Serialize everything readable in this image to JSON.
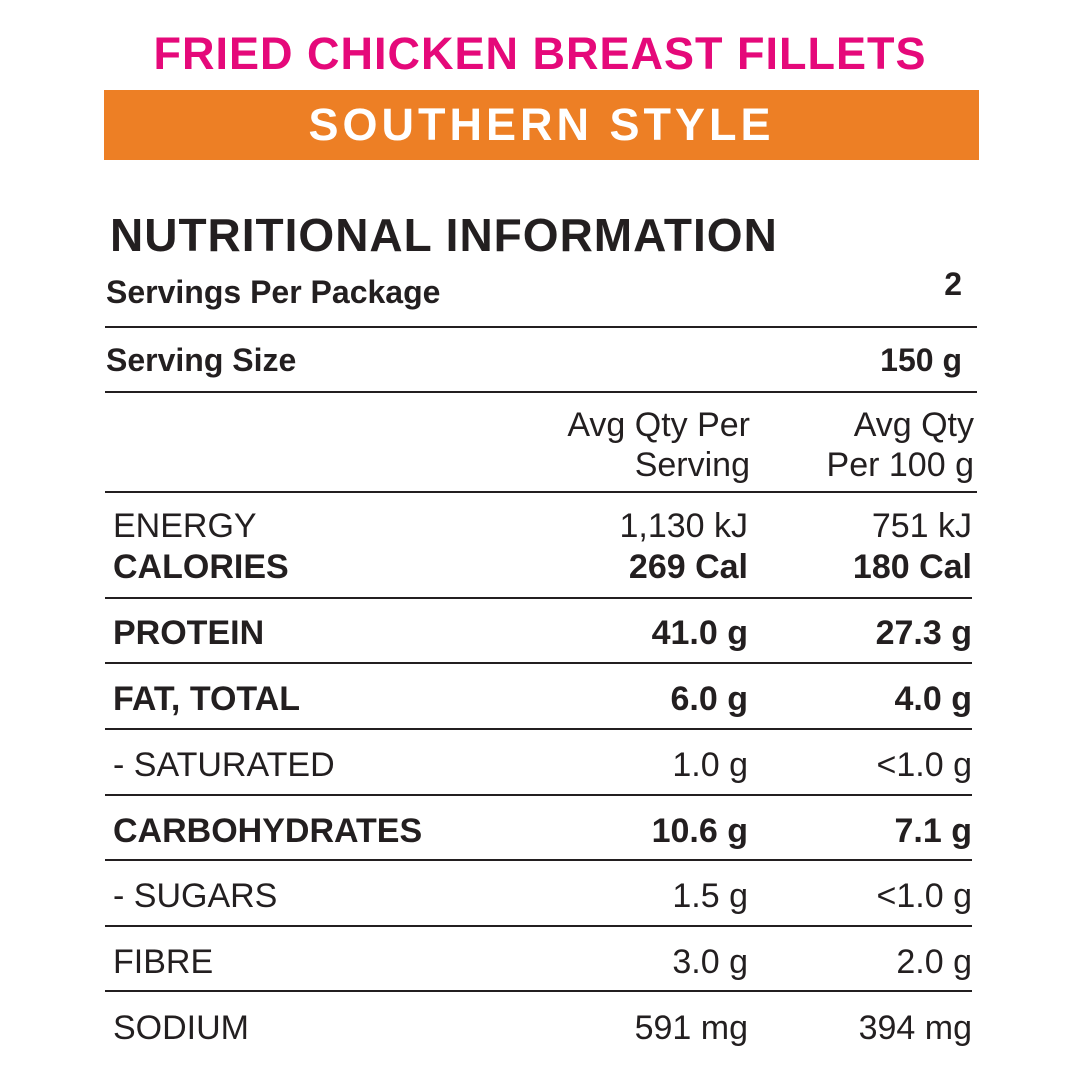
{
  "colors": {
    "title": "#e5097a",
    "banner": "#ed7f25",
    "text": "#231f20"
  },
  "title": "FRIED CHICKEN BREAST FILLETS",
  "subtitle": "SOUTHERN STYLE",
  "heading": "NUTRITIONAL INFORMATION",
  "servings_per_package": {
    "label": "Servings Per Package",
    "value": "2"
  },
  "serving_size": {
    "label": "Serving Size",
    "value": "150 g"
  },
  "columns": {
    "per_serving": [
      "Avg Qty Per",
      "Serving"
    ],
    "per_100g": [
      "Avg Qty",
      "Per 100 g"
    ]
  },
  "rows": [
    {
      "label": "ENERGY",
      "per_serving": "1,130 kJ",
      "per_100g": "751 kJ",
      "bold": false
    },
    {
      "label": "CALORIES",
      "per_serving": "269 Cal",
      "per_100g": "180 Cal",
      "bold": true
    },
    {
      "label": "PROTEIN",
      "per_serving": "41.0 g",
      "per_100g": "27.3 g",
      "bold": true
    },
    {
      "label": "FAT, TOTAL",
      "per_serving": "6.0 g",
      "per_100g": "4.0 g",
      "bold": true
    },
    {
      "label": "- SATURATED",
      "per_serving": "1.0 g",
      "per_100g": "<1.0 g",
      "bold": false
    },
    {
      "label": "CARBOHYDRATES",
      "per_serving": "10.6 g",
      "per_100g": "7.1 g",
      "bold": true
    },
    {
      "label": "- SUGARS",
      "per_serving": "1.5 g",
      "per_100g": "<1.0 g",
      "bold": false
    },
    {
      "label": "FIBRE",
      "per_serving": "3.0 g",
      "per_100g": "2.0 g",
      "bold": false
    },
    {
      "label": "SODIUM",
      "per_serving": "591 mg",
      "per_100g": "394 mg",
      "bold": false
    }
  ]
}
